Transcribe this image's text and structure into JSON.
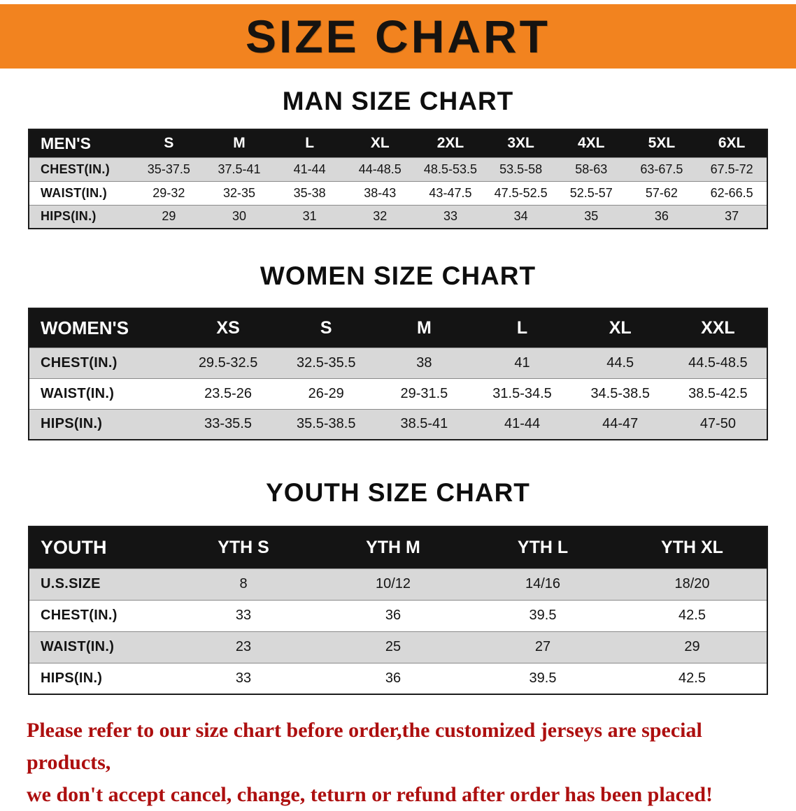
{
  "banner": {
    "title": "SIZE CHART",
    "bg_color": "#f2831f",
    "text_color": "#161310"
  },
  "man_chart": {
    "heading": "MAN SIZE CHART",
    "table": {
      "header": [
        "MEN'S",
        "S",
        "M",
        "L",
        "XL",
        "2XL",
        "3XL",
        "4XL",
        "5XL",
        "6XL"
      ],
      "rows": [
        [
          "CHEST(IN.)",
          "35-37.5",
          "37.5-41",
          "41-44",
          "44-48.5",
          "48.5-53.5",
          "53.5-58",
          "58-63",
          "63-67.5",
          "67.5-72"
        ],
        [
          "WAIST(IN.)",
          "29-32",
          "32-35",
          "35-38",
          "38-43",
          "43-47.5",
          "47.5-52.5",
          "52.5-57",
          "57-62",
          "62-66.5"
        ],
        [
          "HIPS(IN.)",
          "29",
          "30",
          "31",
          "32",
          "33",
          "34",
          "35",
          "36",
          "37"
        ]
      ]
    }
  },
  "women_chart": {
    "heading": "WOMEN SIZE CHART",
    "table": {
      "header": [
        "WOMEN'S",
        "XS",
        "S",
        "M",
        "L",
        "XL",
        "XXL"
      ],
      "rows": [
        [
          "CHEST(IN.)",
          "29.5-32.5",
          "32.5-35.5",
          "38",
          "41",
          "44.5",
          "44.5-48.5"
        ],
        [
          "WAIST(IN.)",
          "23.5-26",
          "26-29",
          "29-31.5",
          "31.5-34.5",
          "34.5-38.5",
          "38.5-42.5"
        ],
        [
          "HIPS(IN.)",
          "33-35.5",
          "35.5-38.5",
          "38.5-41",
          "41-44",
          "44-47",
          "47-50"
        ]
      ]
    }
  },
  "youth_chart": {
    "heading": "YOUTH SIZE CHART",
    "table": {
      "header": [
        "YOUTH",
        "YTH S",
        "YTH M",
        "YTH L",
        "YTH XL"
      ],
      "rows": [
        [
          "U.S.SIZE",
          "8",
          "10/12",
          "14/16",
          "18/20"
        ],
        [
          "CHEST(IN.)",
          "33",
          "36",
          "39.5",
          "42.5"
        ],
        [
          "WAIST(IN.)",
          "23",
          "25",
          "27",
          "29"
        ],
        [
          "HIPS(IN.)",
          "33",
          "36",
          "39.5",
          "42.5"
        ]
      ]
    }
  },
  "notice": {
    "color": "#ad0f0f",
    "lines": [
      "Please refer to our size chart before order,the customized jerseys are special products,",
      "we don't accept cancel, change, teturn or refund after order has been placed!"
    ]
  }
}
